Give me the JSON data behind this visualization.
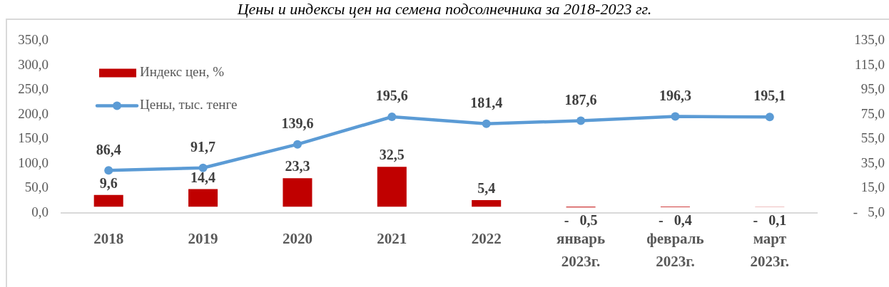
{
  "chart_data": {
    "type": "bar",
    "title": "Цены и индексы цен на семена подсолнечника за 2018-2023 гг.",
    "categories": [
      "2018",
      "2019",
      "2020",
      "2021",
      "2022",
      "январь 2023г.",
      "февраль 2023г.",
      "март 2023г."
    ],
    "series": [
      {
        "name": "Индекс цен, %",
        "color": "#c00000",
        "axis": "y2",
        "values": [
          9.6,
          14.4,
          23.3,
          32.5,
          5.4,
          -0.5,
          -0.4,
          -0.1
        ],
        "value_labels": [
          "9,6",
          "14,4",
          "23,3",
          "32,5",
          "5,4",
          "-   0,5",
          "-   0,4",
          "-   0,1"
        ]
      },
      {
        "type": "line",
        "name": "Цены, тыс. тенге",
        "color": "#5b9bd5",
        "values": [
          86.4,
          91.7,
          139.6,
          195.6,
          181.4,
          187.6,
          196.3,
          195.1
        ],
        "value_labels": [
          "86,4",
          "91,7",
          "139,6",
          "195,6",
          "181,4",
          "187,6",
          "196,3",
          "195,1"
        ]
      }
    ],
    "ylim": [
      0,
      350
    ],
    "yticks": [
      {
        "value": 0,
        "label": "0,0"
      },
      {
        "value": 50,
        "label": "50,0"
      },
      {
        "value": 100,
        "label": "100,0"
      },
      {
        "value": 150,
        "label": "150,0"
      },
      {
        "value": 200,
        "label": "200,0"
      },
      {
        "value": 250,
        "label": "250,0"
      },
      {
        "value": 300,
        "label": "300,0"
      },
      {
        "value": 350,
        "label": "350,0"
      }
    ],
    "y2lim": [
      -5,
      135
    ],
    "y2ticks": [
      {
        "value": -5,
        "label": "-   5,0"
      },
      {
        "value": 15,
        "label": "15,0"
      },
      {
        "value": 35,
        "label": "35,0"
      },
      {
        "value": 55,
        "label": "55,0"
      },
      {
        "value": 75,
        "label": "75,0"
      },
      {
        "value": 95,
        "label": "95,0"
      },
      {
        "value": 115,
        "label": "115,0"
      },
      {
        "value": 135,
        "label": "135,0"
      }
    ],
    "legend": "top left",
    "grid": false,
    "marker": "circle"
  }
}
